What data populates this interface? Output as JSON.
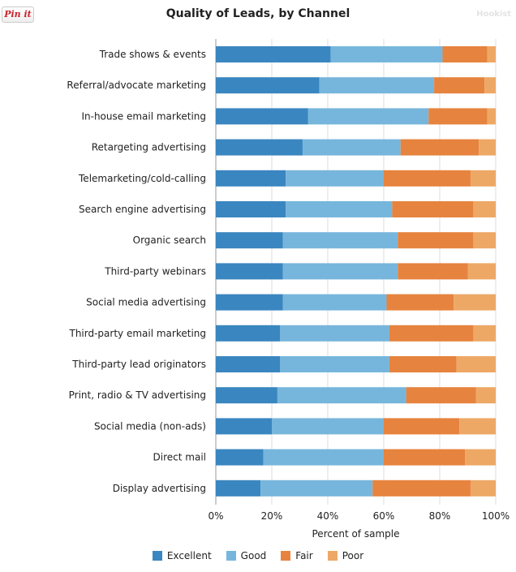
{
  "pin_button": "Pin it",
  "watermark": "Hookist",
  "chart_data": {
    "type": "bar",
    "orientation": "horizontal",
    "stacked": true,
    "title": "Quality of Leads, by Channel",
    "xlabel": "Percent of sample",
    "ylabel": "",
    "xlim": [
      0,
      100
    ],
    "x_ticks": [
      "0%",
      "20%",
      "40%",
      "60%",
      "80%",
      "100%"
    ],
    "grid": "vertical",
    "legend_position": "bottom",
    "categories": [
      "Trade shows & events",
      "Referral/advocate marketing",
      "In-house email marketing",
      "Retargeting advertising",
      "Telemarketing/cold-calling",
      "Search engine advertising",
      "Organic search",
      "Third-party webinars",
      "Social media advertising",
      "Third-party email marketing",
      "Third-party lead originators",
      "Print, radio & TV advertising",
      "Social media (non-ads)",
      "Direct mail",
      "Display advertising"
    ],
    "series": [
      {
        "name": "Excellent",
        "color": "#3a86c0",
        "values": [
          41,
          37,
          33,
          31,
          25,
          25,
          24,
          24,
          24,
          23,
          23,
          22,
          20,
          17,
          16
        ]
      },
      {
        "name": "Good",
        "color": "#77b6dc",
        "values": [
          40,
          41,
          43,
          35,
          35,
          38,
          41,
          41,
          37,
          39,
          39,
          46,
          40,
          43,
          40
        ]
      },
      {
        "name": "Fair",
        "color": "#e6833e",
        "values": [
          16,
          18,
          21,
          28,
          31,
          29,
          27,
          25,
          24,
          30,
          24,
          25,
          27,
          29,
          35
        ]
      },
      {
        "name": "Poor",
        "color": "#eda866",
        "values": [
          3,
          4,
          3,
          6,
          9,
          8,
          8,
          10,
          15,
          8,
          14,
          7,
          13,
          11,
          9
        ]
      }
    ]
  }
}
